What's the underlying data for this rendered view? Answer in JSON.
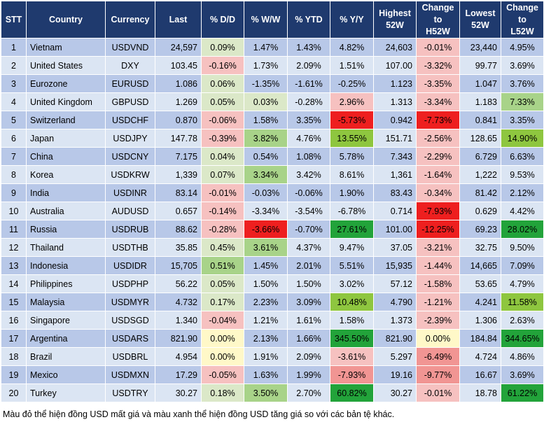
{
  "headers": [
    "STT",
    "Country",
    "Currency",
    "Last",
    "% D/D",
    "% W/W",
    "% YTD",
    "% Y/Y",
    "Highest\n52W",
    "Change\nto\nH52W",
    "Lowest\n52W",
    "Change\nto\nL52W"
  ],
  "rows": [
    [
      "1",
      "Vietnam",
      "USDVND",
      "24,597",
      "0.09%",
      "1.47%",
      "1.43%",
      "4.82%",
      "24,603",
      "-0.01%",
      "23,440",
      "4.95%"
    ],
    [
      "2",
      "United States",
      "DXY",
      "103.45",
      "-0.16%",
      "1.73%",
      "2.09%",
      "1.51%",
      "107.00",
      "-3.32%",
      "99.77",
      "3.69%"
    ],
    [
      "3",
      "Eurozone",
      "EURUSD",
      "1.086",
      "0.06%",
      "-1.35%",
      "-1.61%",
      "-0.25%",
      "1.123",
      "-3.35%",
      "1.047",
      "3.76%"
    ],
    [
      "4",
      "United Kingdom",
      "GBPUSD",
      "1.269",
      "0.05%",
      "0.03%",
      "-0.28%",
      "2.96%",
      "1.313",
      "-3.34%",
      "1.183",
      "7.33%"
    ],
    [
      "5",
      "Switzerland",
      "USDCHF",
      "0.870",
      "-0.06%",
      "1.58%",
      "3.35%",
      "-5.73%",
      "0.942",
      "-7.73%",
      "0.841",
      "3.35%"
    ],
    [
      "6",
      "Japan",
      "USDJPY",
      "147.78",
      "-0.39%",
      "3.82%",
      "4.76%",
      "13.55%",
      "151.71",
      "-2.56%",
      "128.65",
      "14.90%"
    ],
    [
      "7",
      "China",
      "USDCNY",
      "7.175",
      "0.04%",
      "0.54%",
      "1.08%",
      "5.78%",
      "7.343",
      "-2.29%",
      "6.729",
      "6.63%"
    ],
    [
      "8",
      "Korea",
      "USDKRW",
      "1,339",
      "0.07%",
      "3.34%",
      "3.42%",
      "8.61%",
      "1,361",
      "-1.64%",
      "1,222",
      "9.53%"
    ],
    [
      "9",
      "India",
      "USDINR",
      "83.14",
      "-0.01%",
      "-0.03%",
      "-0.06%",
      "1.90%",
      "83.43",
      "-0.34%",
      "81.42",
      "2.12%"
    ],
    [
      "10",
      "Australia",
      "AUDUSD",
      "0.657",
      "-0.14%",
      "-3.34%",
      "-3.54%",
      "-6.78%",
      "0.714",
      "-7.93%",
      "0.629",
      "4.42%"
    ],
    [
      "11",
      "Russia",
      "USDRUB",
      "88.62",
      "-0.28%",
      "-3.66%",
      "-0.70%",
      "27.61%",
      "101.00",
      "-12.25%",
      "69.23",
      "28.02%"
    ],
    [
      "12",
      "Thailand",
      "USDTHB",
      "35.85",
      "0.45%",
      "3.61%",
      "4.37%",
      "9.47%",
      "37.05",
      "-3.21%",
      "32.75",
      "9.50%"
    ],
    [
      "13",
      "Indonesia",
      "USDIDR",
      "15,705",
      "0.51%",
      "1.45%",
      "2.01%",
      "5.51%",
      "15,935",
      "-1.44%",
      "14,665",
      "7.09%"
    ],
    [
      "14",
      "Philippines",
      "USDPHP",
      "56.22",
      "0.05%",
      "1.50%",
      "1.50%",
      "3.02%",
      "57.12",
      "-1.58%",
      "53.65",
      "4.79%"
    ],
    [
      "15",
      "Malaysia",
      "USDMYR",
      "4.732",
      "0.17%",
      "2.23%",
      "3.09%",
      "10.48%",
      "4.790",
      "-1.21%",
      "4.241",
      "11.58%"
    ],
    [
      "16",
      "Singapore",
      "USDSGD",
      "1.340",
      "-0.04%",
      "1.21%",
      "1.61%",
      "1.58%",
      "1.373",
      "-2.39%",
      "1.306",
      "2.63%"
    ],
    [
      "17",
      "Argentina",
      "USDARS",
      "821.90",
      "0.00%",
      "2.13%",
      "1.66%",
      "345.50%",
      "821.90",
      "0.00%",
      "184.84",
      "344.65%"
    ],
    [
      "18",
      "Brazil",
      "USDBRL",
      "4.954",
      "0.00%",
      "1.91%",
      "2.09%",
      "-3.61%",
      "5.297",
      "-6.49%",
      "4.724",
      "4.86%"
    ],
    [
      "19",
      "Mexico",
      "USDMXN",
      "17.29",
      "-0.05%",
      "1.63%",
      "1.99%",
      "-7.93%",
      "19.16",
      "-9.77%",
      "16.67",
      "3.69%"
    ],
    [
      "20",
      "Turkey",
      "USDTRY",
      "30.27",
      "0.18%",
      "3.50%",
      "2.70%",
      "60.82%",
      "30.27",
      "-0.01%",
      "18.78",
      "61.22%"
    ]
  ],
  "cell_colors": {
    "0": {
      "4": "pos1",
      "9": "neg1"
    },
    "1": {
      "4": "neg1",
      "9": "neg1"
    },
    "2": {
      "4": "pos1",
      "9": "neg1"
    },
    "3": {
      "4": "pos1",
      "5": "pos1",
      "7": "neg1",
      "9": "neg1",
      "11": "pos2"
    },
    "4": {
      "4": "neg1",
      "7": "neg3",
      "9": "neg3"
    },
    "5": {
      "4": "neg1",
      "5": "pos2",
      "7": "pos3",
      "9": "neg1",
      "11": "pos3"
    },
    "6": {
      "4": "pos1",
      "9": "neg1"
    },
    "7": {
      "4": "pos1",
      "5": "pos2",
      "9": "neg1"
    },
    "8": {
      "4": "neg1",
      "9": "neg1"
    },
    "9": {
      "4": "neg1",
      "9": "neg3"
    },
    "10": {
      "4": "neg1",
      "5": "neg3",
      "7": "pos4",
      "9": "neg3",
      "11": "pos4"
    },
    "11": {
      "4": "pos1",
      "5": "pos2",
      "9": "neg1"
    },
    "12": {
      "4": "pos2",
      "9": "neg1"
    },
    "13": {
      "4": "pos1",
      "9": "neg1"
    },
    "14": {
      "4": "pos1",
      "7": "pos3",
      "9": "neg1",
      "11": "pos3"
    },
    "15": {
      "4": "neg1",
      "9": "neg1"
    },
    "16": {
      "4": "neu",
      "7": "pos4",
      "9": "neu",
      "11": "pos4"
    },
    "17": {
      "4": "neu",
      "7": "neg1",
      "9": "neg2"
    },
    "18": {
      "4": "neg1",
      "7": "neg2",
      "9": "neg2"
    },
    "19": {
      "4": "pos1",
      "5": "pos2",
      "7": "pos4",
      "9": "neg1",
      "11": "pos4"
    }
  },
  "footnote": "Màu đỏ thể hiện đồng USD mất giá và màu xanh thể hiện đồng USD tăng giá so với các bản tệ khác."
}
